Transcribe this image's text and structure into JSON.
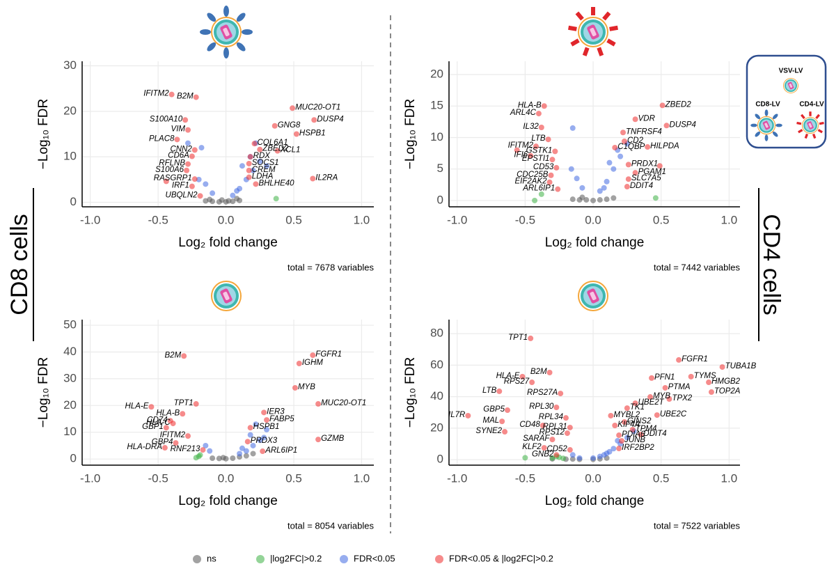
{
  "chart_data": [
    {
      "type": "scatter",
      "x_label": "Log₂ fold change",
      "y_label": "−Log₁₀ FDR",
      "caption": "total = 7678 variables",
      "xlim": [
        -1.06,
        1.09
      ],
      "ylim": [
        -1,
        31
      ],
      "grid": true,
      "xticks": [
        {
          "value": -1,
          "label": "-1.0"
        },
        -0.5,
        {
          "value": 0,
          "label": "0.0"
        },
        0.5,
        {
          "value": 1,
          "label": "1.0"
        }
      ],
      "yticks": [
        0,
        10,
        20,
        30
      ],
      "series": [
        {
          "color": "#555555",
          "x": [
            -0.15,
            -0.1,
            -0.05,
            0,
            0.05,
            0.1,
            -0.12,
            0.08,
            0.02,
            -0.03
          ],
          "values": [
            0.3,
            0.2,
            0.1,
            0.1,
            0.2,
            0.4,
            0.6,
            0.8,
            0.3,
            0.5
          ]
        },
        {
          "color": "#3cb043",
          "x": [
            0.37
          ],
          "values": [
            0.8
          ]
        },
        {
          "color": "#4169e1",
          "x": [
            0.05,
            0.1,
            0.15,
            0.2,
            0.25,
            0.12,
            0.18,
            -0.1,
            -0.15,
            -0.2,
            0.22,
            0.3,
            -0.18,
            0.08,
            -0.28
          ],
          "values": [
            1.5,
            3,
            5,
            7,
            9,
            8,
            10,
            2,
            4,
            5,
            13,
            8,
            12,
            2.5,
            13
          ]
        },
        {
          "color": "#ee2c2c",
          "x": [
            -0.4,
            -0.22,
            -0.3,
            -0.28,
            -0.36,
            -0.23,
            -0.25,
            -0.28,
            -0.29,
            -0.23,
            -0.25,
            -0.19,
            0.49,
            0.65,
            0.36,
            0.52,
            0.21,
            0.25,
            0.38,
            0.18,
            0.17,
            0.17,
            0.17,
            0.22,
            0.64,
            -0.44
          ],
          "values": [
            23.7,
            23.1,
            18.1,
            15.9,
            13.8,
            11.5,
            10.1,
            8.4,
            7.0,
            5.1,
            3.5,
            1.4,
            20.7,
            18.1,
            16.8,
            15.0,
            12.9,
            11.6,
            11.3,
            10.0,
            8.5,
            7.0,
            5.5,
            4.0,
            5.2,
            4.6
          ],
          "labels": [
            "IFITM2",
            "B2M",
            "S100A10",
            "VIM",
            "PLAC8",
            "CNN2",
            "CD6A",
            "RFLNB",
            "S100A6",
            "RASGRP1",
            "IRF1",
            "UBQLN2",
            "MUC20-OT1",
            "DUSP4",
            "GNG8",
            "HSPB1",
            "COL6A1",
            "ZBED2",
            "XCL1",
            "RDX",
            "SOCS1",
            "CREM",
            "LDHA",
            "BHLHE40",
            "IL2RA",
            null
          ]
        }
      ]
    },
    {
      "type": "scatter",
      "x_label": "Log₂ fold change",
      "y_label": "−Log₁₀ FDR",
      "caption": "total = 7442 variables",
      "xlim": [
        -1.06,
        1.08
      ],
      "ylim": [
        -1,
        22.1
      ],
      "grid": true,
      "xticks": [
        {
          "value": -1,
          "label": "-1.0"
        },
        -0.5,
        {
          "value": 0,
          "label": "0.0"
        },
        0.5,
        {
          "value": 1,
          "label": "1.0"
        }
      ],
      "yticks": [
        0,
        5,
        10,
        15,
        20
      ],
      "series": [
        {
          "color": "#555555",
          "x": [
            -0.15,
            -0.1,
            -0.05,
            0,
            0.05,
            0.1,
            0.15,
            -0.08
          ],
          "values": [
            0.2,
            0.1,
            0.1,
            0,
            0.1,
            0.2,
            0.4,
            0.5
          ]
        },
        {
          "color": "#3cb043",
          "x": [
            -0.43,
            0.46,
            -0.38
          ],
          "values": [
            0,
            0.4,
            1
          ]
        },
        {
          "color": "#4169e1",
          "x": [
            0.05,
            0.1,
            0.15,
            0.2,
            0.12,
            0.18,
            -0.08,
            -0.12,
            -0.16,
            0.25,
            -0.15,
            0.08
          ],
          "values": [
            1.5,
            3,
            5,
            7,
            6,
            8,
            2,
            3.5,
            5,
            9,
            11.5,
            2
          ]
        },
        {
          "color": "#ee2c2c",
          "x": [
            -0.36,
            -0.4,
            -0.38,
            -0.33,
            -0.42,
            -0.28,
            -0.46,
            -0.3,
            -0.27,
            -0.31,
            -0.32,
            -0.26,
            0.51,
            0.31,
            0.54,
            0.22,
            0.23,
            0.16,
            0.4,
            0.26,
            0.31,
            0.26,
            0.25,
            0.49,
            -0.56
          ],
          "values": [
            15.0,
            13.8,
            11.6,
            9.7,
            8.6,
            7.8,
            7.1,
            6.5,
            5.2,
            4.0,
            2.9,
            1.8,
            15.1,
            12.9,
            11.9,
            10.8,
            9.4,
            8.4,
            8.5,
            5.7,
            4.4,
            3.4,
            2.2,
            5.5,
            8.0
          ],
          "labels": [
            "HLA-B",
            "ARL4C",
            "IL32",
            "LTB",
            "IFITM2",
            "GSTK1",
            "IFI6",
            "EPSTI1",
            "CD53",
            "CDC25B",
            "EIF2AK2",
            "ARL6IP1",
            "ZBED2",
            "VDR",
            "DUSP4",
            "TNFRSF4",
            "CD2",
            "C1QBP",
            "HILPDA",
            "PRDX1",
            "PGAM1",
            "SLC7A5",
            "DDIT4",
            null,
            null
          ]
        }
      ]
    },
    {
      "type": "scatter",
      "x_label": "Log₂ fold change",
      "y_label": "−Log₁₀ FDR",
      "caption": "total = 8054 variables",
      "xlim": [
        -1.06,
        1.09
      ],
      "ylim": [
        -2.3,
        52.1
      ],
      "grid": true,
      "xticks": [
        {
          "value": -1,
          "label": "-1.0"
        },
        -0.5,
        {
          "value": 0,
          "label": "0.0"
        },
        0.5,
        {
          "value": 1,
          "label": "1.0"
        }
      ],
      "yticks": [
        0,
        10,
        20,
        30,
        40,
        50
      ],
      "series": [
        {
          "color": "#555555",
          "x": [
            -0.1,
            -0.05,
            0,
            0.05,
            0.1,
            0.15,
            0.2,
            -0.02
          ],
          "values": [
            0.3,
            0.2,
            0.1,
            0.3,
            0.8,
            1.2,
            2,
            0.5
          ]
        },
        {
          "color": "#3cb043",
          "x": [
            -0.22,
            -0.2,
            -0.19
          ],
          "values": [
            0.5,
            1,
            1.5
          ]
        },
        {
          "color": "#4169e1",
          "x": [
            0.1,
            0.15,
            0.2,
            0.25,
            0.18,
            0.12,
            0.3,
            -0.15,
            -0.12,
            0.22,
            0.28
          ],
          "values": [
            2,
            3,
            5,
            7,
            9,
            4,
            11,
            5,
            3,
            13,
            8
          ]
        },
        {
          "color": "#ee2c2c",
          "x": [
            -0.31,
            0.64,
            0.54,
            0.51,
            0.68,
            -0.55,
            -0.22,
            -0.32,
            -0.41,
            -0.39,
            -0.44,
            -0.28,
            -0.37,
            -0.45,
            -0.17,
            0.28,
            0.3,
            0.18,
            0.16,
            0.27,
            0.68
          ],
          "values": [
            38.5,
            38.8,
            35.7,
            26.6,
            20.6,
            19.5,
            20.6,
            16.9,
            14.3,
            13.3,
            11.7,
            8.6,
            6.0,
            4.2,
            3.4,
            17.4,
            14.6,
            11.7,
            6.5,
            2.9,
            7.3
          ],
          "labels": [
            "B2M",
            "FGFR1",
            "IGHM",
            "MYB",
            "MUC20-OT1",
            "HLA-E",
            "TPT1",
            "HLA-B",
            "CD74",
            "HLA-C",
            "GBP1",
            "IFITM2",
            "GBP4",
            "HLA-DRA",
            "RNF213",
            "IER3",
            "FABP5",
            "HSPB1",
            "PRDX3",
            "ARL6IP1",
            "GZMB"
          ]
        }
      ]
    },
    {
      "type": "scatter",
      "x_label": "Log₂ fold change",
      "y_label": "−Log₁₀ FDR",
      "caption": "total = 7522 variables",
      "xlim": [
        -1.06,
        1.08
      ],
      "ylim": [
        -3.5,
        88.9
      ],
      "grid": true,
      "xticks": [
        {
          "value": -1,
          "label": "-1.0"
        },
        -0.5,
        {
          "value": 0,
          "label": "0.0"
        },
        0.5,
        {
          "value": 1,
          "label": "1.0"
        }
      ],
      "yticks": [
        0,
        20,
        40,
        60,
        80
      ],
      "series": [
        {
          "color": "#555555",
          "x": [
            -0.3,
            -0.2,
            -0.1,
            0,
            0.05,
            -0.15,
            0.1
          ],
          "values": [
            0.5,
            0.3,
            0.2,
            0.2,
            0.5,
            0.4,
            1
          ]
        },
        {
          "color": "#3cb043",
          "x": [
            -0.3,
            -0.27,
            -0.25,
            -0.22,
            -0.5
          ],
          "values": [
            1,
            2,
            1.5,
            0.8,
            1.2
          ]
        },
        {
          "color": "#4169e1",
          "x": [
            0,
            0.05,
            0.1,
            0.15,
            0.2,
            0.25,
            0.12,
            0.18,
            0.3,
            -0.1,
            -0.15,
            0.08
          ],
          "values": [
            1,
            2,
            4,
            7,
            10,
            14,
            5,
            12,
            18,
            1,
            3,
            3
          ]
        },
        {
          "color": "#ee2c2c",
          "x": [
            -0.46,
            -0.32,
            -0.52,
            -0.45,
            -0.69,
            -0.24,
            -0.63,
            -0.27,
            -0.92,
            -0.2,
            -0.67,
            -0.37,
            -0.17,
            -0.65,
            -0.19,
            -0.3,
            -0.36,
            -0.17,
            -0.27,
            0.63,
            0.95,
            0.43,
            0.72,
            0.53,
            0.85,
            0.42,
            0.87,
            0.25,
            0.31,
            0.56,
            0.13,
            0.47,
            0.23,
            0.29,
            0.16,
            0.35,
            0.19,
            0.21,
            0.19
          ],
          "values": [
            77,
            55.3,
            52.7,
            49.1,
            43.4,
            42.0,
            31.4,
            33.2,
            27.9,
            26.5,
            24.3,
            21.7,
            20.4,
            17.7,
            16.8,
            12.8,
            7.5,
            6.2,
            3.0,
            63.3,
            58.8,
            51.8,
            52.7,
            45.6,
            49.1,
            39.8,
            42.9,
            32.7,
            35.8,
            38.5,
            27.9,
            28.3,
            23.9,
            19.0,
            21.7,
            15.9,
            15.5,
            11.9,
            7.1
          ],
          "labels": [
            "TPT1",
            "B2M",
            "HLA-E",
            "RPS27",
            "LTB",
            "RPS27A",
            "GBP5",
            "RPL30",
            "IL7R",
            "RPL34",
            "MAL",
            "CD48",
            "RPL31",
            "SYNE2",
            "RPS12",
            "SARAF",
            "KLF2",
            "CD52",
            "GNB2",
            "FGFR1",
            "TUBA1B",
            "PFN1",
            "TYMS",
            "PTMA",
            "HMGB2",
            "MYB",
            "TOP2A",
            "TK1",
            "UBE2T",
            "TPX2",
            "MYBL2",
            "UBE2C",
            "GINS2",
            "TPM4",
            "KIF4A",
            "DDIT4",
            "PDIA6",
            "JUNB",
            "IRF2BP2"
          ]
        }
      ]
    }
  ],
  "legend": [
    {
      "name": "ns",
      "color": "#555555"
    },
    {
      "name": "|log2FC|>0.2",
      "color": "#3cb043"
    },
    {
      "name": "FDR<0.05",
      "color": "#4169e1"
    },
    {
      "name": "FDR<0.05 & |log2FC|>0.2",
      "color": "#ee2c2c"
    }
  ],
  "side_labels": {
    "left": "CD8 cells",
    "right": "CD4 cells"
  },
  "key": {
    "title": "VSV-LV",
    "items": [
      "CD8-LV",
      "CD4-LV"
    ]
  }
}
